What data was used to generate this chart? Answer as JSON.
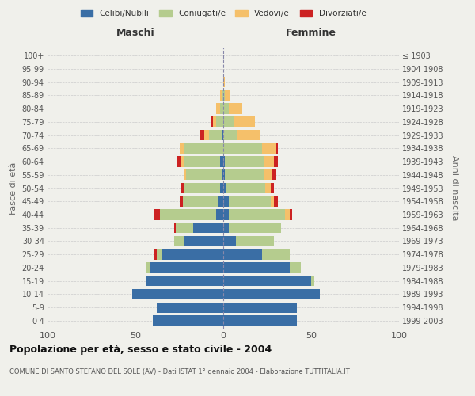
{
  "age_groups": [
    "0-4",
    "5-9",
    "10-14",
    "15-19",
    "20-24",
    "25-29",
    "30-34",
    "35-39",
    "40-44",
    "45-49",
    "50-54",
    "55-59",
    "60-64",
    "65-69",
    "70-74",
    "75-79",
    "80-84",
    "85-89",
    "90-94",
    "95-99",
    "100+"
  ],
  "birth_years": [
    "1999-2003",
    "1994-1998",
    "1989-1993",
    "1984-1988",
    "1979-1983",
    "1974-1978",
    "1969-1973",
    "1964-1968",
    "1959-1963",
    "1954-1958",
    "1949-1953",
    "1944-1948",
    "1939-1943",
    "1934-1938",
    "1929-1933",
    "1924-1928",
    "1919-1923",
    "1914-1918",
    "1909-1913",
    "1904-1908",
    "≤ 1903"
  ],
  "maschi": {
    "celibi": [
      40,
      38,
      52,
      44,
      42,
      35,
      22,
      17,
      4,
      3,
      2,
      1,
      2,
      0,
      1,
      0,
      0,
      0,
      0,
      0,
      0
    ],
    "coniugati": [
      0,
      0,
      0,
      0,
      2,
      3,
      6,
      10,
      32,
      20,
      20,
      20,
      20,
      22,
      7,
      4,
      2,
      1,
      0,
      0,
      0
    ],
    "vedovi": [
      0,
      0,
      0,
      0,
      0,
      0,
      0,
      0,
      0,
      0,
      0,
      1,
      2,
      3,
      3,
      2,
      2,
      1,
      0,
      0,
      0
    ],
    "divorziati": [
      0,
      0,
      0,
      0,
      0,
      1,
      0,
      1,
      3,
      2,
      2,
      0,
      2,
      0,
      2,
      1,
      0,
      0,
      0,
      0,
      0
    ]
  },
  "femmine": {
    "nubili": [
      42,
      42,
      55,
      50,
      38,
      22,
      7,
      3,
      3,
      3,
      2,
      1,
      1,
      0,
      0,
      0,
      0,
      0,
      0,
      0,
      0
    ],
    "coniugate": [
      0,
      0,
      0,
      2,
      6,
      16,
      22,
      30,
      32,
      24,
      22,
      22,
      22,
      22,
      8,
      6,
      3,
      1,
      0,
      0,
      0
    ],
    "vedove": [
      0,
      0,
      0,
      0,
      0,
      0,
      0,
      0,
      3,
      2,
      3,
      5,
      6,
      8,
      13,
      12,
      8,
      3,
      1,
      0,
      0
    ],
    "divorziate": [
      0,
      0,
      0,
      0,
      0,
      0,
      0,
      0,
      1,
      2,
      2,
      2,
      2,
      1,
      0,
      0,
      0,
      0,
      0,
      0,
      0
    ]
  },
  "colors": {
    "celibi_nubili": "#3a6ea5",
    "coniugati": "#b5cc8e",
    "vedovi": "#f5c06a",
    "divorziati": "#cc2222"
  },
  "xlim": 100,
  "title": "Popolazione per età, sesso e stato civile - 2004",
  "subtitle": "COMUNE DI SANTO STEFANO DEL SOLE (AV) - Dati ISTAT 1° gennaio 2004 - Elaborazione TUTTITALIA.IT",
  "xlabel_left": "Maschi",
  "xlabel_right": "Femmine",
  "ylabel_left": "Fasce di età",
  "ylabel_right": "Anni di nascita",
  "background_color": "#f0f0eb"
}
